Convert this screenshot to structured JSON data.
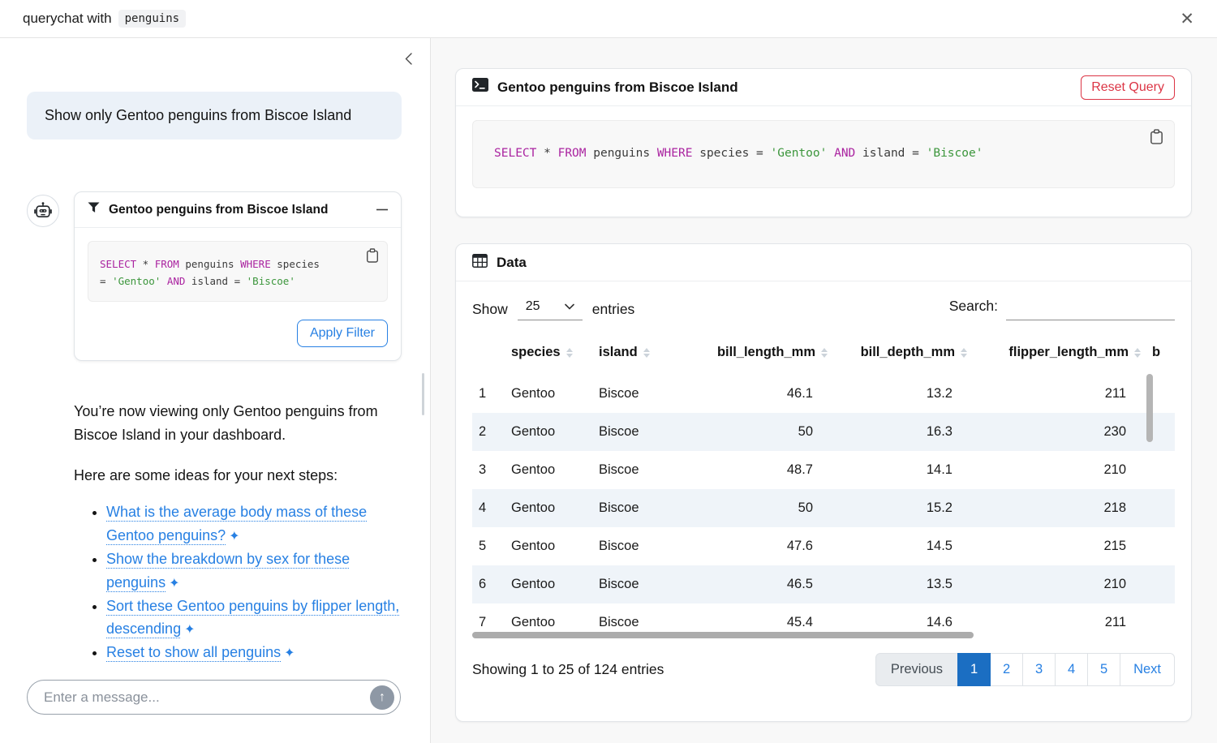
{
  "topbar": {
    "title": "querychat with",
    "dataset": "penguins",
    "close_glyph": "✕"
  },
  "chat": {
    "user_message": "Show only Gentoo penguins from Biscoe Island",
    "tool_card": {
      "title": "Gentoo penguins from Biscoe Island",
      "apply_label": "Apply Filter"
    },
    "sidebar_sql_lines": [
      [
        [
          "SELECT",
          "k"
        ],
        [
          " * ",
          ""
        ],
        [
          "FROM",
          "k"
        ],
        [
          " penguins ",
          ""
        ],
        [
          "WHERE",
          "k"
        ],
        [
          " species",
          ""
        ]
      ],
      [
        [
          "= ",
          ""
        ],
        [
          "'Gentoo'",
          "s"
        ],
        [
          " ",
          ""
        ],
        [
          "AND",
          "k"
        ],
        [
          " island = ",
          ""
        ],
        [
          "'Biscoe'",
          "s"
        ]
      ]
    ],
    "assistant_paragraph_1": "You’re now viewing only Gentoo penguins from Biscoe Island in your dashboard.",
    "assistant_paragraph_2": "Here are some ideas for your next steps:",
    "sparkle_glyph": "✦",
    "suggestions": [
      "What is the average body mass of these Gentoo penguins?",
      "Show the breakdown by sex for these penguins",
      "Sort these Gentoo penguins by flipper length, descending",
      "Reset to show all penguins"
    ],
    "input_placeholder": "Enter a message...",
    "send_glyph": "↑"
  },
  "query_card": {
    "title": "Gentoo penguins from Biscoe Island",
    "reset_label": "Reset Query",
    "sql_lines": [
      [
        [
          "SELECT",
          "k"
        ],
        [
          " * ",
          ""
        ],
        [
          "FROM",
          "k"
        ],
        [
          " penguins ",
          ""
        ],
        [
          "WHERE",
          "k"
        ],
        [
          " species = ",
          ""
        ],
        [
          "'Gentoo'",
          "s"
        ],
        [
          " ",
          ""
        ],
        [
          "AND",
          "k"
        ],
        [
          " island = ",
          ""
        ],
        [
          "'Biscoe'",
          "s"
        ]
      ]
    ]
  },
  "data_card": {
    "title": "Data",
    "show_label": "Show",
    "page_size": "25",
    "entries_label": "entries",
    "search_label": "Search:",
    "table": {
      "headers": [
        {
          "label": "",
          "sortable": false,
          "align": "left"
        },
        {
          "label": "species",
          "sortable": true,
          "align": "left"
        },
        {
          "label": "island",
          "sortable": true,
          "align": "left"
        },
        {
          "label": "bill_length_mm",
          "sortable": true,
          "align": "right"
        },
        {
          "label": "bill_depth_mm",
          "sortable": true,
          "align": "right"
        },
        {
          "label": "flipper_length_mm",
          "sortable": true,
          "align": "right"
        },
        {
          "label": "b",
          "sortable": false,
          "align": "left"
        }
      ],
      "rows": [
        [
          "1",
          "Gentoo",
          "Biscoe",
          "46.1",
          "13.2",
          "211",
          ""
        ],
        [
          "2",
          "Gentoo",
          "Biscoe",
          "50",
          "16.3",
          "230",
          ""
        ],
        [
          "3",
          "Gentoo",
          "Biscoe",
          "48.7",
          "14.1",
          "210",
          ""
        ],
        [
          "4",
          "Gentoo",
          "Biscoe",
          "50",
          "15.2",
          "218",
          ""
        ],
        [
          "5",
          "Gentoo",
          "Biscoe",
          "47.6",
          "14.5",
          "215",
          ""
        ],
        [
          "6",
          "Gentoo",
          "Biscoe",
          "46.5",
          "13.5",
          "210",
          ""
        ],
        [
          "7",
          "Gentoo",
          "Biscoe",
          "45.4",
          "14.6",
          "211",
          ""
        ]
      ]
    },
    "footer_summary": "Showing 1 to 25 of 124 entries",
    "pagination": [
      {
        "label": "Previous",
        "state": "disabled"
      },
      {
        "label": "1",
        "state": "active"
      },
      {
        "label": "2",
        "state": "normal"
      },
      {
        "label": "3",
        "state": "normal"
      },
      {
        "label": "4",
        "state": "normal"
      },
      {
        "label": "5",
        "state": "normal"
      },
      {
        "label": "Next",
        "state": "normal"
      }
    ]
  },
  "colors": {
    "primary": "#2780e3",
    "primary_active": "#1b6ec2",
    "danger": "#dc3545",
    "sql_keyword": "#aa23a0",
    "sql_string": "#3c963c",
    "row_stripe": "#eff4f9",
    "user_bubble": "#ebf1f8"
  }
}
